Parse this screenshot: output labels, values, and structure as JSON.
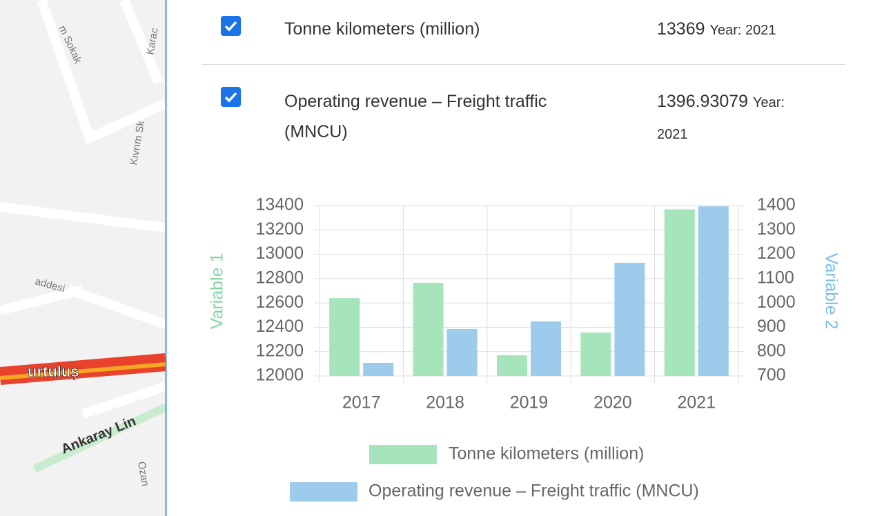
{
  "map": {
    "labels": [
      "m Sokak",
      "Karac",
      "Kıvrım Sk",
      "addesi",
      "urtuluş",
      "Ankaray Lin",
      "Ozan"
    ]
  },
  "items": [
    {
      "label": "Tonne kilometers (million)",
      "value": 13369,
      "year": "Year: 2021"
    },
    {
      "label": "Operating revenue – Freight traffic (MNCU)",
      "value": 1396.93079,
      "year": "Year: 2021"
    }
  ],
  "chart_data": {
    "type": "bar",
    "categories": [
      "2017",
      "2018",
      "2019",
      "2020",
      "2021"
    ],
    "series": [
      {
        "name": "Tonne kilometers (million)",
        "color": "#a6e5bb",
        "values": [
          12640,
          12765,
          12170,
          12357,
          13369
        ]
      },
      {
        "name": "Operating revenue – Freight traffic (MNCU)",
        "color": "#9ccbeb",
        "values": [
          754,
          893,
          924,
          1165,
          1396.93079
        ],
        "axis": "y2"
      }
    ],
    "ylabel": "Variable 1",
    "y2label": "Variable 2",
    "ylim": [
      12000,
      13400
    ],
    "yticks": [
      12000,
      12200,
      12400,
      12600,
      12800,
      13000,
      13200,
      13400
    ],
    "y2lim": [
      700,
      1400
    ],
    "y2ticks": [
      700,
      800,
      900,
      1000,
      1100,
      1200,
      1300,
      1400
    ],
    "grid": true,
    "legend": "bottom"
  }
}
